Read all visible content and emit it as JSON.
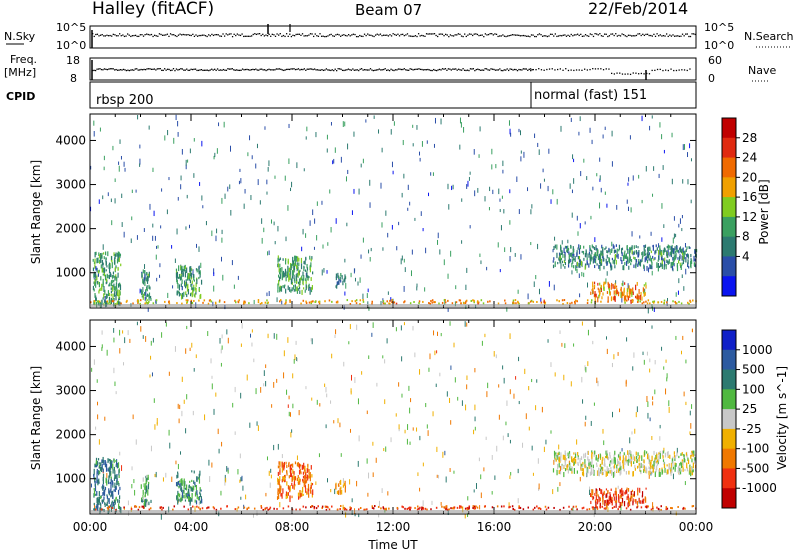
{
  "header": {
    "station": "Halley (fitACF)",
    "beam": "Beam 07",
    "date": "22/Feb/2014"
  },
  "strip_panels": {
    "nsky_label": "N.Sky",
    "nsky_top_tick": "10^5",
    "nsky_bottom_tick": "10^0",
    "nsearch_label": "N.Search",
    "nsearch_top_tick": "10^5",
    "nsearch_bottom_tick": "10^0",
    "freq_label_1": "Freq.",
    "freq_label_2": "[MHz]",
    "freq_ticks": [
      "18",
      "8"
    ],
    "nave_label": "Nave",
    "nave_ticks": [
      "60",
      "0"
    ],
    "cpid_label": "CPID",
    "cpid_segments": [
      {
        "label": "rbsp 200",
        "start_hour": 0
      },
      {
        "label": "normal (fast) 151",
        "start_hour": 17.5
      }
    ]
  },
  "chart_data": [
    {
      "type": "heatmap",
      "title": "Power",
      "xlabel": "",
      "ylabel": "Slant Range [km]",
      "xlim_hours": [
        0,
        24
      ],
      "ylim_km": [
        200,
        4600
      ],
      "y_ticks": [
        "1000",
        "2000",
        "3000",
        "4000"
      ],
      "colorbar_label": "Power [dB]",
      "colorbar_ticks": [
        "4",
        "8",
        "12",
        "16",
        "20",
        "24",
        "28"
      ],
      "colorbar_colors": [
        "#0a14f0",
        "#2a4ea8",
        "#2c7a70",
        "#3aa060",
        "#80cc20",
        "#f0a000",
        "#f06a00",
        "#e02a10",
        "#c00000"
      ],
      "echo_regions": [
        {
          "t0": 0.1,
          "t1": 1.2,
          "r0": 300,
          "r1": 1500,
          "level": 12
        },
        {
          "t0": 2.0,
          "t1": 2.4,
          "r0": 400,
          "r1": 1100,
          "level": 10
        },
        {
          "t0": 3.4,
          "t1": 4.4,
          "r0": 500,
          "r1": 1200,
          "level": 12
        },
        {
          "t0": 7.4,
          "t1": 8.8,
          "r0": 600,
          "r1": 1400,
          "level": 12
        },
        {
          "t0": 9.7,
          "t1": 10.1,
          "r0": 700,
          "r1": 1000,
          "level": 8
        },
        {
          "t0": 18.3,
          "t1": 24.0,
          "r0": 1150,
          "r1": 1650,
          "level": 10
        },
        {
          "t0": 19.8,
          "t1": 22.0,
          "r0": 450,
          "r1": 800,
          "level": 22
        }
      ]
    },
    {
      "type": "heatmap",
      "title": "Velocity",
      "xlabel": "Time UT",
      "ylabel": "Slant Range [km]",
      "xlim_hours": [
        0,
        24
      ],
      "ylim_km": [
        200,
        4600
      ],
      "x_ticks": [
        "00:00",
        "04:00",
        "08:00",
        "12:00",
        "16:00",
        "20:00",
        "00:00"
      ],
      "y_ticks": [
        "1000",
        "2000",
        "3000",
        "4000"
      ],
      "colorbar_label": "Velocity [m s^-1]",
      "colorbar_ticks": [
        "1000",
        "500",
        "100",
        "25",
        "-25",
        "-100",
        "-500",
        "-1000"
      ],
      "colorbar_colors": [
        "#1020c8",
        "#2c5aa0",
        "#2c7a70",
        "#50b840",
        "#c8c8c8",
        "#f0b000",
        "#f07800",
        "#f03010",
        "#c00000"
      ],
      "echo_regions": [
        {
          "t0": 0.1,
          "t1": 1.2,
          "r0": 300,
          "r1": 1500,
          "velocity": 150
        },
        {
          "t0": 2.0,
          "t1": 2.4,
          "r0": 400,
          "r1": 1100,
          "velocity": 100
        },
        {
          "t0": 3.4,
          "t1": 4.4,
          "r0": 500,
          "r1": 1200,
          "velocity": 120
        },
        {
          "t0": 7.4,
          "t1": 8.8,
          "r0": 600,
          "r1": 1400,
          "velocity": -150
        },
        {
          "t0": 9.7,
          "t1": 10.1,
          "r0": 700,
          "r1": 1000,
          "velocity": -120
        },
        {
          "t0": 18.3,
          "t1": 24.0,
          "r0": 1150,
          "r1": 1650,
          "velocity": 0
        },
        {
          "t0": 19.8,
          "t1": 22.0,
          "r0": 450,
          "r1": 800,
          "velocity": -200
        }
      ]
    }
  ]
}
